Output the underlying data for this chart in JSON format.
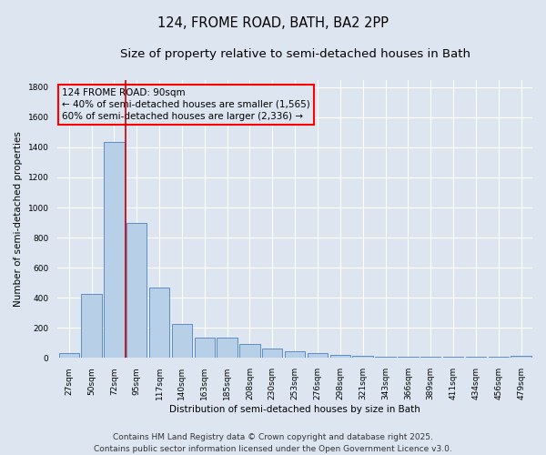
{
  "title": "124, FROME ROAD, BATH, BA2 2PP",
  "subtitle": "Size of property relative to semi-detached houses in Bath",
  "xlabel": "Distribution of semi-detached houses by size in Bath",
  "ylabel": "Number of semi-detached properties",
  "bin_labels": [
    "27sqm",
    "50sqm",
    "72sqm",
    "95sqm",
    "117sqm",
    "140sqm",
    "163sqm",
    "185sqm",
    "208sqm",
    "230sqm",
    "253sqm",
    "276sqm",
    "298sqm",
    "321sqm",
    "343sqm",
    "366sqm",
    "389sqm",
    "411sqm",
    "434sqm",
    "456sqm",
    "479sqm"
  ],
  "bar_heights": [
    30,
    425,
    1435,
    900,
    465,
    225,
    135,
    135,
    95,
    60,
    45,
    30,
    20,
    15,
    10,
    8,
    8,
    8,
    10,
    8,
    15
  ],
  "bar_color": "#b8cfe8",
  "bar_edge_color": "#5b8dc8",
  "bg_color": "#dde5f0",
  "grid_color": "#ffffff",
  "annotation_line1": "124 FROME ROAD: 90sqm",
  "annotation_line2": "← 40% of semi-detached houses are smaller (1,565)",
  "annotation_line3": "60% of semi-detached houses are larger (2,336) →",
  "vline_color": "#cc0000",
  "footer_line1": "Contains HM Land Registry data © Crown copyright and database right 2025.",
  "footer_line2": "Contains public sector information licensed under the Open Government Licence v3.0.",
  "ylim": [
    0,
    1850
  ],
  "yticks": [
    0,
    200,
    400,
    600,
    800,
    1000,
    1200,
    1400,
    1600,
    1800
  ],
  "title_fontsize": 10.5,
  "subtitle_fontsize": 9.5,
  "axis_label_fontsize": 7.5,
  "tick_fontsize": 6.5,
  "annotation_fontsize": 7.5,
  "footer_fontsize": 6.5
}
